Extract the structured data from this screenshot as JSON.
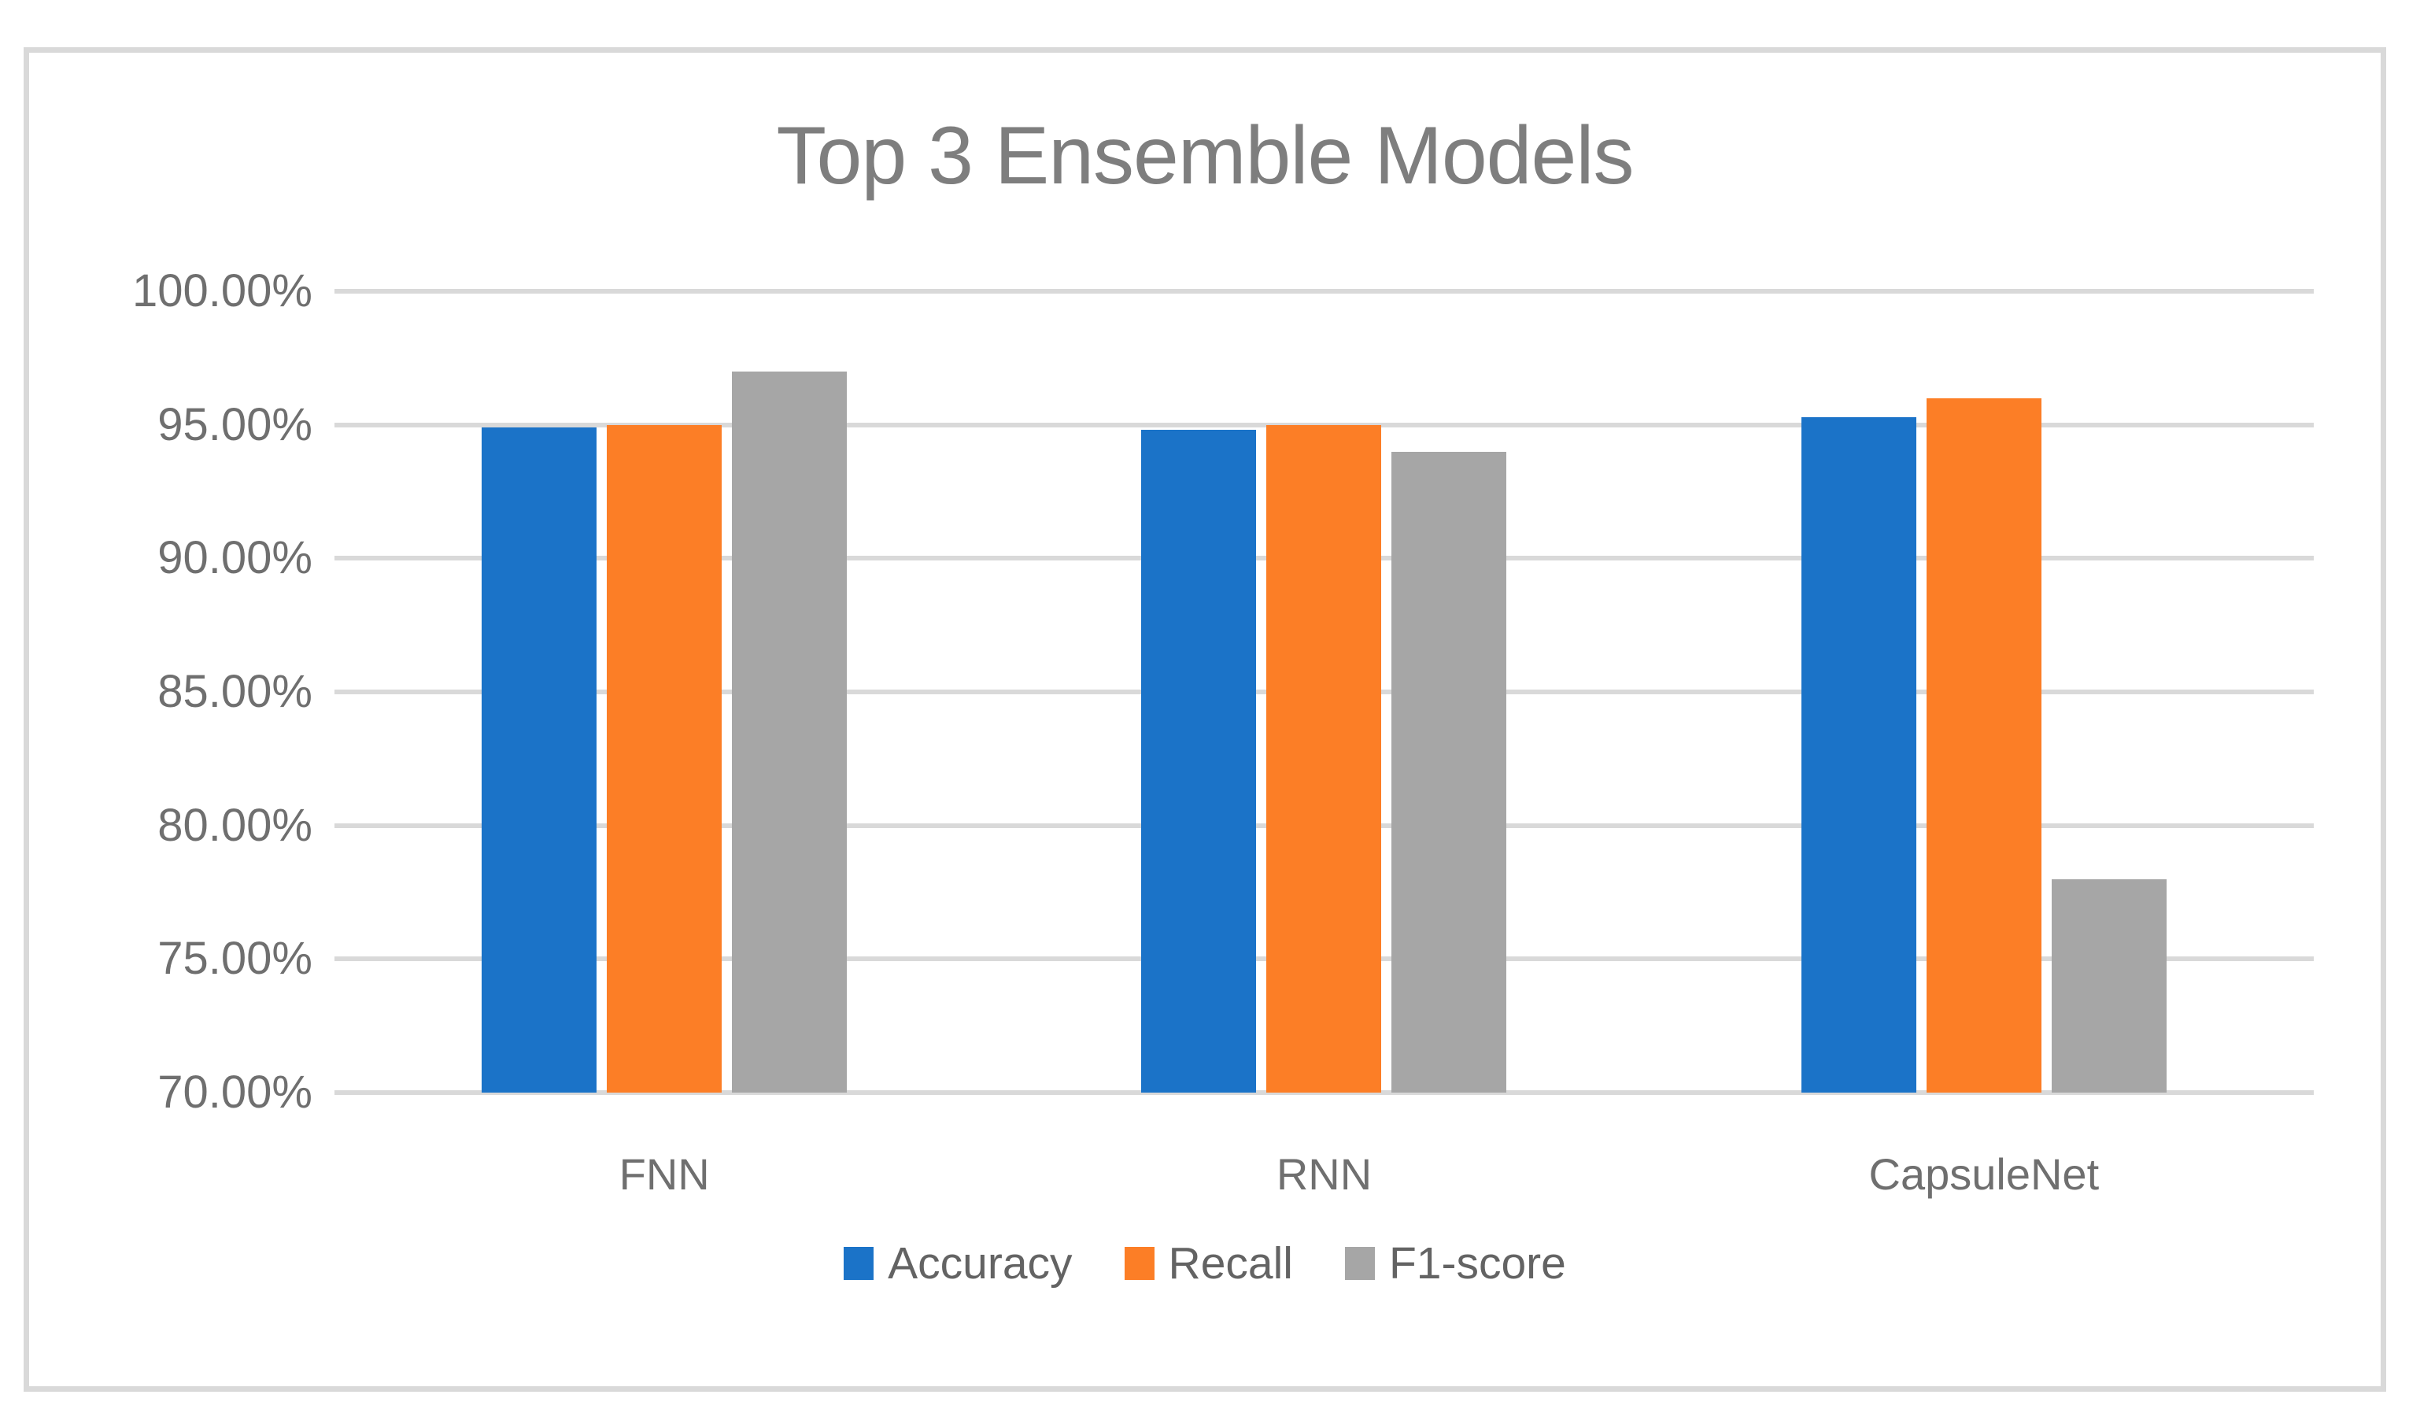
{
  "chart": {
    "title": "Top 3 Ensemble Models"
  },
  "chart_data": {
    "type": "bar",
    "title": "Top 3 Ensemble Models",
    "categories": [
      "FNN",
      "RNN",
      "CapsuleNet"
    ],
    "series": [
      {
        "name": "Accuracy",
        "color": "#1b73c8",
        "values": [
          94.9,
          94.8,
          95.3
        ]
      },
      {
        "name": "Recall",
        "color": "#fc7e26",
        "values": [
          95.0,
          95.0,
          96.0
        ]
      },
      {
        "name": "F1-score",
        "color": "#a6a6a6",
        "values": [
          97.0,
          94.0,
          78.0
        ]
      }
    ],
    "xlabel": "",
    "ylabel": "",
    "ylim": [
      70,
      100
    ],
    "ytick_step": 5,
    "ytick_labels": [
      "100.00%",
      "95.00%",
      "90.00%",
      "85.00%",
      "80.00%",
      "75.00%",
      "70.00%"
    ],
    "grid": true,
    "legend_position": "bottom",
    "colors": {
      "gridline": "#d9d9d9",
      "frame_border": "#d9d9d9",
      "title_text": "#7e7e7e",
      "axis_text": "#6f6f6f",
      "legend_text": "#636363",
      "background": "#ffffff"
    }
  }
}
